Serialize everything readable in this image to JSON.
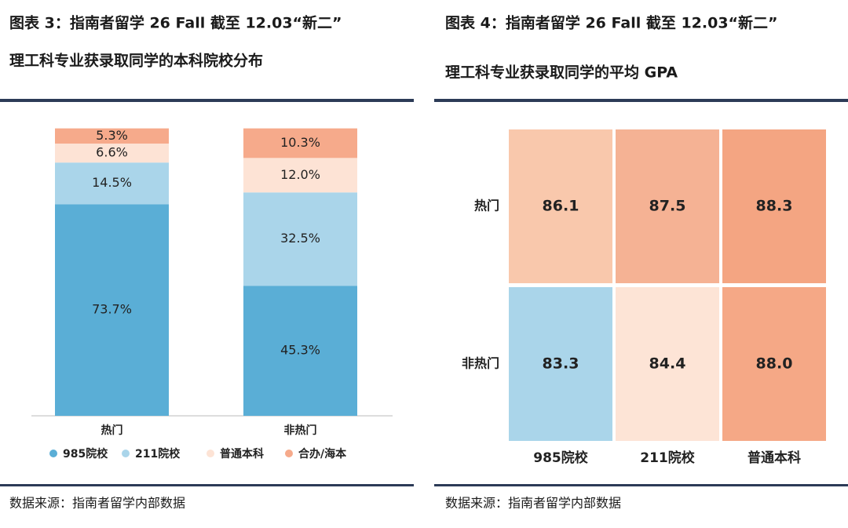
{
  "chart_data": [
    {
      "type": "stacked_bar",
      "title": [
        "图表 3：指南者留学 26 Fall 截至 12.03“新二”",
        "理工科专业获录取同学的本科院校分布"
      ],
      "categories": [
        "热门",
        "非热门"
      ],
      "series": [
        {
          "name": "985院校",
          "color": "#5aaed6",
          "values": [
            73.7,
            45.3
          ],
          "value_labels": [
            "73.7%",
            "45.3%"
          ]
        },
        {
          "name": "211院校",
          "color": "#aad5ea",
          "values": [
            14.5,
            32.5
          ],
          "value_labels": [
            "14.5%",
            "32.5%"
          ]
        },
        {
          "name": "普通本科",
          "color": "#fde3d5",
          "values": [
            6.6,
            12.0
          ],
          "value_labels": [
            "6.6%",
            "12.0%"
          ]
        },
        {
          "name": "合办/海本",
          "color": "#f6aa8b",
          "values": [
            5.3,
            10.3
          ],
          "value_labels": [
            "5.3%",
            "10.3%"
          ]
        }
      ],
      "ylim": [
        0,
        100
      ],
      "source": "数据来源：指南者留学内部数据"
    },
    {
      "type": "heatmap",
      "title": [
        "图表 4：指南者留学 26 Fall 截至 12.03“新二”",
        "理工科专业获录取同学的平均 GPA"
      ],
      "rows": [
        "热门",
        "非热门"
      ],
      "columns": [
        "985院校",
        "211院校",
        "普通本科"
      ],
      "values": [
        [
          86.1,
          87.5,
          88.3
        ],
        [
          83.3,
          84.4,
          88.0
        ]
      ],
      "value_labels": [
        [
          "86.1",
          "87.5",
          "88.3"
        ],
        [
          "83.3",
          "84.4",
          "88.0"
        ]
      ],
      "colors": [
        [
          "#f9c8ac",
          "#f5b294",
          "#f4a582"
        ],
        [
          "#aad5ea",
          "#fde4d6",
          "#f5a886"
        ]
      ],
      "source": "数据来源：指南者留学内部数据"
    }
  ]
}
